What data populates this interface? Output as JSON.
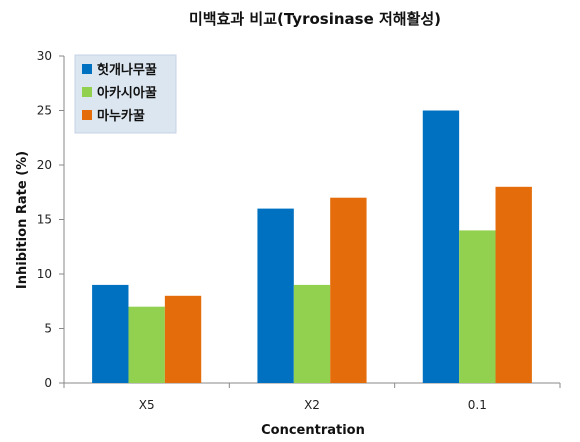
{
  "chart_data": {
    "type": "bar",
    "title": "미백효과 비교(Tyrosinase 저해활성)",
    "xlabel": "Concentration",
    "ylabel": "Inhibition Rate (%)",
    "categories": [
      "X5",
      "X2",
      "0.1"
    ],
    "ylim": [
      0,
      30
    ],
    "yticks": [
      0,
      5,
      10,
      15,
      20,
      25,
      30
    ],
    "grid": false,
    "legend_position": "top-left",
    "series": [
      {
        "name": "헛개나무꿀",
        "color": "#0070C0",
        "values": [
          9,
          16,
          25
        ]
      },
      {
        "name": "아카시아꿀",
        "color": "#92D050",
        "values": [
          7,
          9,
          14
        ]
      },
      {
        "name": "마누카꿀",
        "color": "#E46C0A",
        "values": [
          8,
          17,
          18
        ]
      }
    ]
  }
}
